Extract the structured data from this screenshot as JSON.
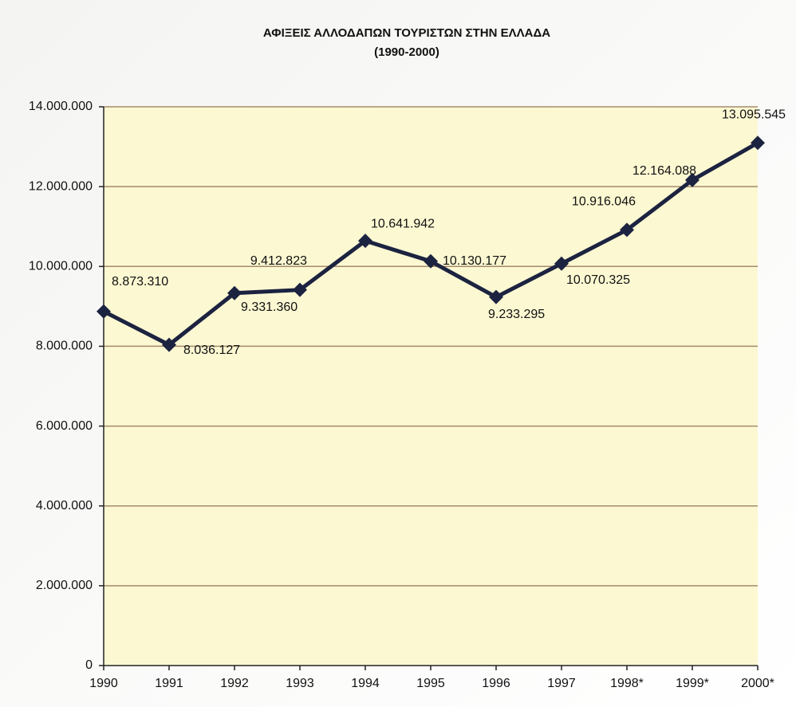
{
  "chart_data": {
    "type": "line",
    "title": "ΑΦΙΞΕΙΣ ΑΛΛΟΔΑΠΩΝ ΤΟΥΡΙΣΤΩΝ ΣΤΗΝ ΕΛΛΑΔΑ",
    "subtitle": "(1990-2000)",
    "categories": [
      "1990",
      "1991",
      "1992",
      "1993",
      "1994",
      "1995",
      "1996",
      "1997",
      "1998*",
      "1999*",
      "2000*"
    ],
    "values": [
      8873310,
      8036127,
      9331360,
      9412823,
      10641942,
      10130177,
      9233295,
      10070325,
      10916046,
      12164088,
      13095545
    ],
    "value_labels": [
      "8.873.310",
      "8.036.127",
      "9.331.360",
      "9.412.823",
      "10.641.942",
      "10.130.177",
      "9.233.295",
      "10.070.325",
      "10.916.046",
      "12.164.088",
      "13.095.545"
    ],
    "color": "#1c2340",
    "ylim": [
      0,
      14000000
    ],
    "yticks": [
      0,
      {
        "value": 2000000,
        "label": "2.000.000"
      },
      {
        "value": 4000000,
        "label": "4.000.000"
      },
      {
        "value": 6000000,
        "label": "6.000.000"
      },
      {
        "value": 8000000,
        "label": "8.000.000"
      },
      {
        "value": 10000000,
        "label": "10.000.000"
      },
      {
        "value": 12000000,
        "label": "12.000.000"
      },
      {
        "value": 14000000,
        "label": "14.000.000"
      }
    ],
    "grid": true
  }
}
